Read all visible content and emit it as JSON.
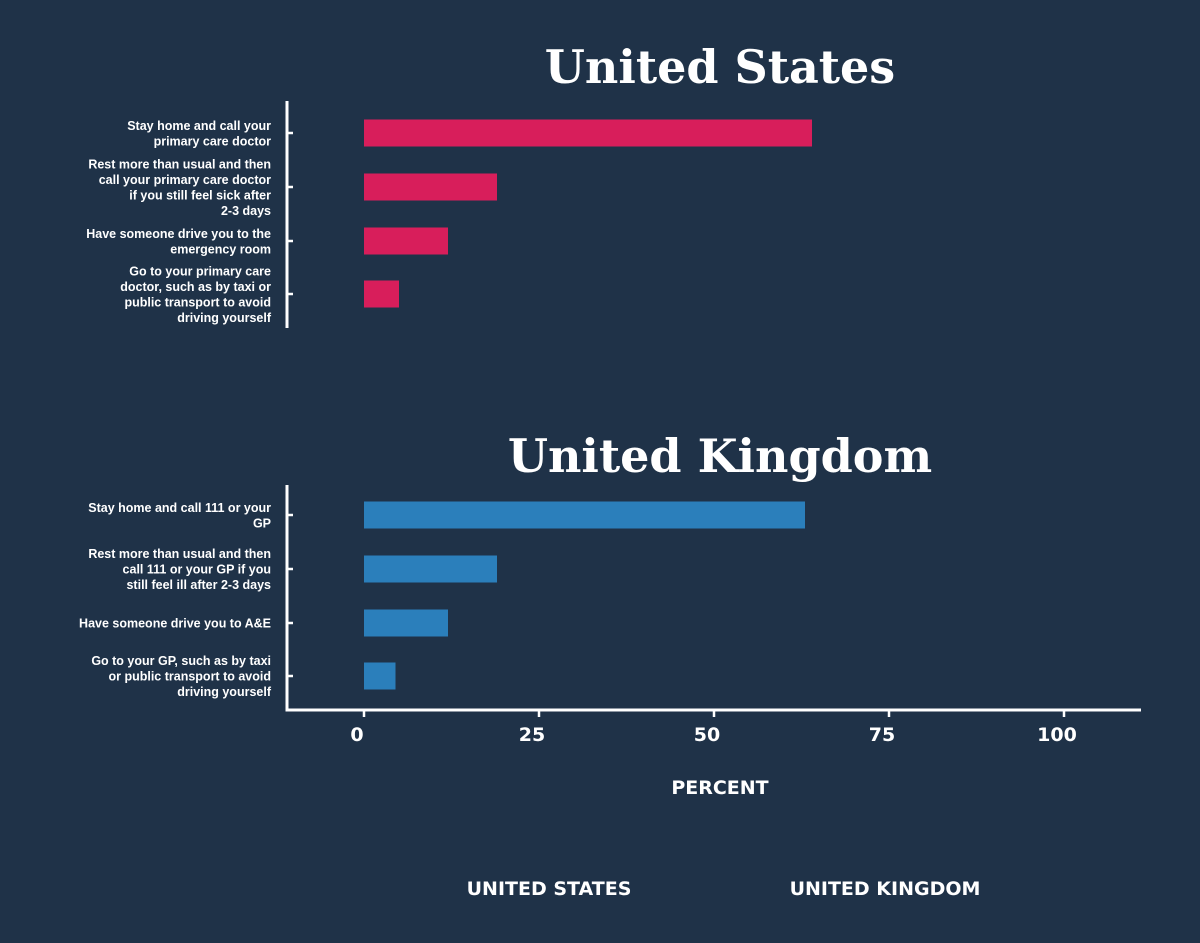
{
  "chart_data": {
    "type": "bar",
    "orientation": "horizontal",
    "xlabel": "PERCENT",
    "xlim": [
      -11,
      111
    ],
    "xticks": [
      0,
      25,
      50,
      75,
      100
    ],
    "grid": false,
    "panels": [
      {
        "title": "United States",
        "color": "#d81e5b",
        "categories": [
          [
            "Stay home and call your",
            "primary care doctor"
          ],
          [
            "Rest more than usual and then",
            "call your primary care doctor",
            "if you still feel sick after",
            "2-3 days"
          ],
          [
            "Have someone drive you to the",
            "emergency room"
          ],
          [
            "Go to your primary care",
            "doctor, such as by taxi or",
            "public transport to avoid",
            "driving yourself"
          ]
        ],
        "values": [
          64,
          19,
          12,
          5
        ]
      },
      {
        "title": "United Kingdom",
        "color": "#2b7fbb",
        "categories": [
          [
            "Stay home and call 111 or your",
            "GP"
          ],
          [
            "Rest more than usual and then",
            "call 111 or your GP if you",
            "still feel ill after 2-3 days"
          ],
          [
            "Have someone drive you to A&E"
          ],
          [
            "Go to your GP, such as by taxi",
            "or public transport to avoid",
            "driving yourself"
          ]
        ],
        "values": [
          63,
          19,
          12,
          4.5
        ]
      }
    ],
    "legend": {
      "placement": "bottom",
      "entries": [
        {
          "label": "UNITED STATES",
          "color": "#d81e5b"
        },
        {
          "label": "UNITED KINGDOM",
          "color": "#2b7fbb"
        }
      ]
    }
  }
}
